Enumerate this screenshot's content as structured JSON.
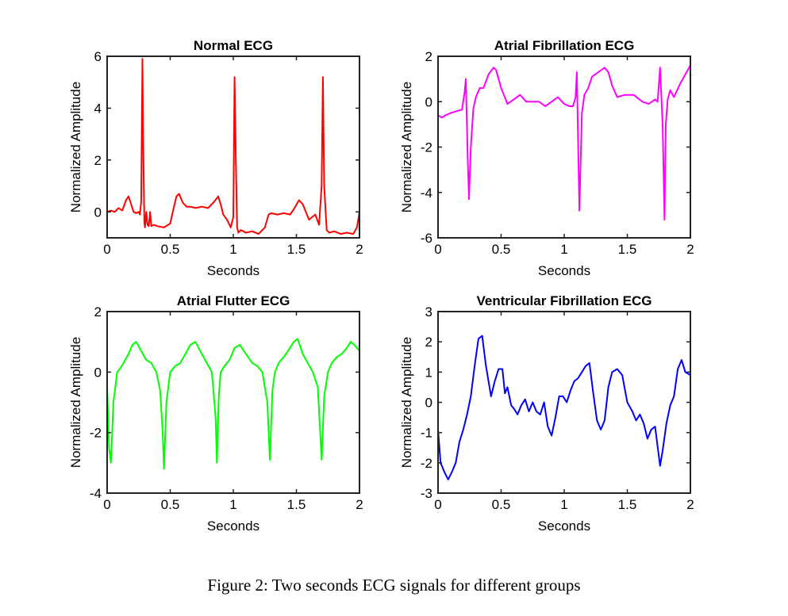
{
  "caption": "Figure 2: Two seconds ECG signals for different groups",
  "chart_data": [
    {
      "type": "line",
      "title": "Normal ECG",
      "xlabel": "Seconds",
      "ylabel": "Normalized Amplitude",
      "xlim": [
        0,
        2
      ],
      "ylim": [
        -1,
        6
      ],
      "xticks": [
        "0",
        "0.5",
        "1",
        "1.5",
        "2"
      ],
      "yticks": [
        "0",
        "2",
        "4",
        "6"
      ],
      "ytick_values": [
        0,
        2,
        4,
        6
      ],
      "xtick_values": [
        0,
        0.5,
        1,
        1.5,
        2
      ],
      "grid": false,
      "series": [
        {
          "color": "#ff0000",
          "x": [
            0,
            0.03,
            0.06,
            0.09,
            0.12,
            0.15,
            0.17,
            0.19,
            0.21,
            0.23,
            0.25,
            0.26,
            0.27,
            0.28,
            0.285,
            0.295,
            0.3,
            0.31,
            0.32,
            0.33,
            0.34,
            0.35,
            0.37,
            0.4,
            0.45,
            0.5,
            0.52,
            0.55,
            0.57,
            0.6,
            0.63,
            0.66,
            0.7,
            0.75,
            0.8,
            0.85,
            0.88,
            0.9,
            0.92,
            0.95,
            0.98,
            1.0,
            1.01,
            1.02,
            1.03,
            1.04,
            1.06,
            1.1,
            1.15,
            1.2,
            1.25,
            1.28,
            1.3,
            1.35,
            1.4,
            1.45,
            1.48,
            1.52,
            1.55,
            1.6,
            1.65,
            1.68,
            1.7,
            1.71,
            1.72,
            1.74,
            1.76,
            1.8,
            1.85,
            1.9,
            1.95,
            1.98,
            2.0
          ],
          "y": [
            0,
            0.05,
            0.0,
            0.15,
            0.05,
            0.45,
            0.6,
            0.3,
            0.0,
            -0.05,
            0.0,
            -0.1,
            0.4,
            5.9,
            3.0,
            -0.4,
            -0.6,
            0.0,
            -0.5,
            -0.55,
            0.0,
            -0.55,
            -0.5,
            -0.55,
            -0.6,
            -0.45,
            0.0,
            0.6,
            0.7,
            0.35,
            0.2,
            0.2,
            0.15,
            0.2,
            0.15,
            0.4,
            0.6,
            0.3,
            -0.1,
            -0.3,
            -0.6,
            -0.2,
            5.2,
            2.0,
            -0.6,
            -0.8,
            -0.7,
            -0.8,
            -0.75,
            -0.85,
            -0.6,
            -0.1,
            -0.05,
            -0.1,
            -0.05,
            -0.1,
            0.1,
            0.45,
            0.3,
            -0.3,
            -0.1,
            -0.5,
            1.0,
            5.2,
            1.0,
            -0.7,
            -0.8,
            -0.75,
            -0.85,
            -0.8,
            -0.85,
            -0.6,
            0.0
          ]
        }
      ]
    },
    {
      "type": "line",
      "title": "Atrial Fibrillation ECG",
      "xlabel": "Seconds",
      "ylabel": "Normalized Amplitude",
      "xlim": [
        0,
        2
      ],
      "ylim": [
        -6,
        2
      ],
      "xticks": [
        "0",
        "0.5",
        "1",
        "1.5",
        "2"
      ],
      "yticks": [
        "-6",
        "-4",
        "-2",
        "0",
        "2"
      ],
      "ytick_values": [
        -6,
        -4,
        -2,
        0,
        2
      ],
      "xtick_values": [
        0,
        0.5,
        1,
        1.5,
        2
      ],
      "grid": false,
      "series": [
        {
          "color": "#ff00ff",
          "x": [
            0,
            0.03,
            0.06,
            0.1,
            0.13,
            0.16,
            0.19,
            0.21,
            0.22,
            0.235,
            0.245,
            0.26,
            0.28,
            0.3,
            0.33,
            0.36,
            0.4,
            0.44,
            0.46,
            0.5,
            0.55,
            0.6,
            0.65,
            0.7,
            0.75,
            0.8,
            0.85,
            0.9,
            0.95,
            1.0,
            1.04,
            1.07,
            1.09,
            1.1,
            1.12,
            1.14,
            1.16,
            1.19,
            1.22,
            1.27,
            1.32,
            1.35,
            1.38,
            1.42,
            1.48,
            1.55,
            1.62,
            1.67,
            1.72,
            1.74,
            1.76,
            1.78,
            1.795,
            1.805,
            1.82,
            1.84,
            1.87,
            1.92,
            1.96,
            2.0
          ],
          "y": [
            -0.6,
            -0.7,
            -0.6,
            -0.5,
            -0.45,
            -0.4,
            -0.35,
            0.4,
            1.0,
            -2.5,
            -4.3,
            -2.0,
            -0.3,
            0.2,
            0.6,
            0.6,
            1.2,
            1.5,
            1.4,
            0.6,
            -0.1,
            0.1,
            0.3,
            0.0,
            0.0,
            0.0,
            -0.2,
            0.0,
            0.2,
            -0.1,
            -0.2,
            -0.2,
            0.2,
            1.3,
            -4.8,
            -0.5,
            0.3,
            0.6,
            1.1,
            1.3,
            1.5,
            1.3,
            0.7,
            0.2,
            0.3,
            0.3,
            0.0,
            -0.1,
            0.1,
            0.0,
            1.5,
            -1.0,
            -5.2,
            -1.0,
            0.1,
            0.5,
            0.2,
            0.8,
            1.2,
            1.6
          ]
        }
      ]
    },
    {
      "type": "line",
      "title": "Atrial Flutter ECG",
      "xlabel": "Seconds",
      "ylabel": "Normalized Amplitude",
      "xlim": [
        0,
        2
      ],
      "ylim": [
        -4,
        2
      ],
      "xticks": [
        "0",
        "0.5",
        "1",
        "1.5",
        "2"
      ],
      "yticks": [
        "-4",
        "-2",
        "0",
        "2"
      ],
      "ytick_values": [
        -4,
        -2,
        0,
        2
      ],
      "xtick_values": [
        0,
        0.5,
        1,
        1.5,
        2
      ],
      "grid": false,
      "series": [
        {
          "color": "#00ff00",
          "x": [
            0,
            0.015,
            0.03,
            0.05,
            0.08,
            0.1,
            0.13,
            0.17,
            0.2,
            0.23,
            0.27,
            0.31,
            0.35,
            0.39,
            0.42,
            0.44,
            0.45,
            0.47,
            0.5,
            0.54,
            0.58,
            0.62,
            0.66,
            0.7,
            0.75,
            0.79,
            0.83,
            0.86,
            0.87,
            0.885,
            0.9,
            0.93,
            0.97,
            1.01,
            1.05,
            1.1,
            1.15,
            1.19,
            1.23,
            1.27,
            1.29,
            1.31,
            1.33,
            1.36,
            1.4,
            1.45,
            1.48,
            1.51,
            1.55,
            1.59,
            1.63,
            1.67,
            1.7,
            1.72,
            1.75,
            1.78,
            1.82,
            1.86,
            1.9,
            1.93,
            1.96,
            2.0
          ],
          "y": [
            -0.5,
            -2.5,
            -3.0,
            -1.0,
            0.0,
            0.1,
            0.3,
            0.6,
            0.9,
            1.0,
            0.7,
            0.4,
            0.3,
            0.0,
            -0.6,
            -2.0,
            -3.2,
            -1.0,
            0.0,
            0.2,
            0.3,
            0.6,
            0.9,
            1.0,
            0.6,
            0.3,
            0.0,
            -1.5,
            -3.0,
            -0.8,
            0.0,
            0.2,
            0.4,
            0.8,
            0.9,
            0.6,
            0.3,
            0.2,
            0.0,
            -1.0,
            -2.9,
            -0.6,
            0.0,
            0.3,
            0.5,
            0.8,
            1.0,
            1.1,
            0.6,
            0.3,
            0.0,
            -0.5,
            -2.9,
            -0.8,
            0.0,
            0.3,
            0.5,
            0.6,
            0.8,
            1.0,
            0.9,
            0.7
          ]
        }
      ]
    },
    {
      "type": "line",
      "title": "Ventricular Fibrillation ECG",
      "xlabel": "Seconds",
      "ylabel": "Normalized Amplitude",
      "xlim": [
        0,
        2
      ],
      "ylim": [
        -3,
        3
      ],
      "xticks": [
        "0",
        "0.5",
        "1",
        "1.5",
        "2"
      ],
      "yticks": [
        "-3",
        "-2",
        "-1",
        "0",
        "1",
        "2",
        "3"
      ],
      "ytick_values": [
        -3,
        -2,
        -1,
        0,
        1,
        2,
        3
      ],
      "xtick_values": [
        0,
        0.5,
        1,
        1.5,
        2
      ],
      "grid": false,
      "series": [
        {
          "color": "#0000ff",
          "x": [
            0,
            0.02,
            0.05,
            0.08,
            0.11,
            0.14,
            0.17,
            0.2,
            0.23,
            0.26,
            0.29,
            0.32,
            0.35,
            0.38,
            0.42,
            0.45,
            0.48,
            0.51,
            0.53,
            0.55,
            0.58,
            0.6,
            0.63,
            0.66,
            0.69,
            0.72,
            0.75,
            0.78,
            0.81,
            0.84,
            0.87,
            0.9,
            0.93,
            0.96,
            0.99,
            1.02,
            1.05,
            1.08,
            1.11,
            1.14,
            1.17,
            1.2,
            1.23,
            1.26,
            1.29,
            1.32,
            1.35,
            1.38,
            1.42,
            1.46,
            1.5,
            1.54,
            1.57,
            1.6,
            1.63,
            1.66,
            1.69,
            1.72,
            1.76,
            1.78,
            1.81,
            1.84,
            1.87,
            1.9,
            1.93,
            1.96,
            2.0
          ],
          "y": [
            -0.9,
            -2.0,
            -2.3,
            -2.55,
            -2.3,
            -2.0,
            -1.3,
            -0.9,
            -0.4,
            0.2,
            1.2,
            2.1,
            2.2,
            1.2,
            0.2,
            0.7,
            1.1,
            1.1,
            0.3,
            0.5,
            -0.1,
            -0.2,
            -0.4,
            -0.1,
            0.1,
            -0.3,
            0.0,
            -0.3,
            -0.4,
            0.0,
            -0.8,
            -1.1,
            -0.5,
            0.2,
            0.2,
            0.0,
            0.4,
            0.7,
            0.8,
            1.0,
            1.2,
            1.3,
            0.3,
            -0.6,
            -0.9,
            -0.6,
            0.5,
            1.0,
            1.1,
            0.9,
            0.0,
            -0.3,
            -0.6,
            -0.4,
            -0.7,
            -1.2,
            -0.9,
            -0.8,
            -2.1,
            -1.6,
            -0.7,
            -0.1,
            0.2,
            1.1,
            1.4,
            1.0,
            0.9
          ]
        }
      ]
    }
  ]
}
